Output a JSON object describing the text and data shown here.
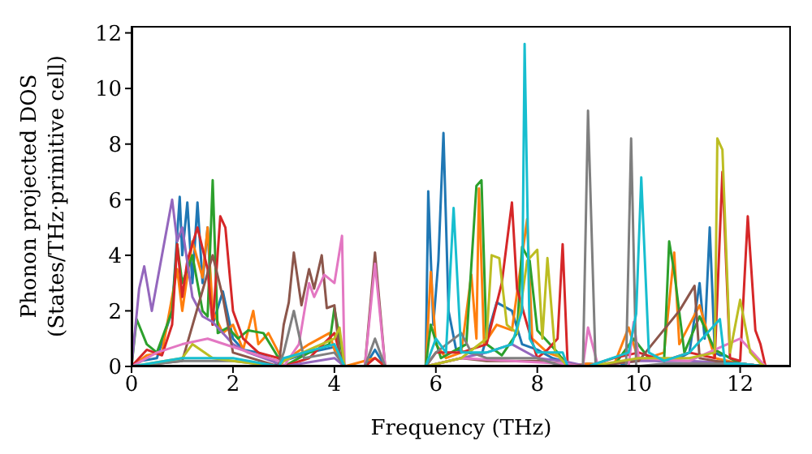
{
  "chart_data": {
    "type": "line",
    "xlabel": "Frequency (THz)",
    "ylabel": "Phonon projected DOS\n(States/THz·primitive cell)",
    "xlim": [
      0,
      13
    ],
    "xticks": [
      0,
      2,
      4,
      6,
      8,
      10,
      12
    ],
    "ylim": [
      0,
      12.25
    ],
    "yticks": [
      0,
      2,
      4,
      6,
      8,
      10,
      12
    ],
    "grid": false,
    "marker": "none",
    "line_style": "solid",
    "series": [
      {
        "color": "#1f77b4",
        "x": [
          0,
          0.2,
          0.5,
          0.8,
          0.95,
          1.0,
          1.1,
          1.2,
          1.3,
          1.4,
          1.5,
          1.6,
          1.8,
          2.0,
          2.2,
          2.5,
          2.8,
          2.9,
          3.0,
          3.5,
          4.0,
          4.1,
          4.2,
          4.6,
          4.8,
          5.0,
          5.8,
          5.85,
          5.95,
          6.05,
          6.15,
          6.25,
          6.4,
          6.6,
          6.9,
          7.2,
          7.5,
          7.7,
          8.0,
          8.3,
          8.5,
          8.6,
          9.0,
          9.6,
          10.0,
          10.4,
          10.8,
          11.0,
          11.2,
          11.3,
          11.4,
          11.5,
          11.6,
          11.7,
          12.0,
          12.4,
          12.5
        ],
        "values": [
          0,
          0.2,
          0.3,
          2,
          6.1,
          4,
          5.9,
          3,
          5.9,
          3,
          5.0,
          1.5,
          2.7,
          1.0,
          0.6,
          0.5,
          0.2,
          0,
          0.2,
          0.5,
          0.7,
          0.3,
          0,
          0,
          0.6,
          0,
          0,
          6.3,
          1.5,
          3.8,
          8.4,
          2.0,
          0.6,
          0.5,
          0.4,
          2.3,
          2.0,
          0.8,
          0.6,
          0.3,
          0.2,
          0,
          0.1,
          0,
          0.3,
          0.2,
          0.3,
          0.5,
          3.0,
          1.0,
          5.0,
          0.5,
          0.4,
          0.4,
          0.1,
          0,
          0
        ]
      },
      {
        "color": "#ff7f0e",
        "x": [
          0,
          0.3,
          0.6,
          0.9,
          1.0,
          1.2,
          1.4,
          1.5,
          1.6,
          1.8,
          2.0,
          2.2,
          2.4,
          2.5,
          2.7,
          2.9,
          3.0,
          3.5,
          3.9,
          4.0,
          4.2,
          4.8,
          5.0,
          5.8,
          5.9,
          6.0,
          6.2,
          6.5,
          6.7,
          6.8,
          6.85,
          6.95,
          7.2,
          7.5,
          7.8,
          7.9,
          8.2,
          8.5,
          8.6,
          9.0,
          9.5,
          9.8,
          10.0,
          10.5,
          10.7,
          10.8,
          11.0,
          11.2,
          11.5,
          12.0,
          12.5
        ],
        "values": [
          0,
          0.4,
          0.5,
          3.5,
          2.0,
          4.5,
          3.2,
          5.0,
          2.0,
          1.2,
          1.5,
          0.6,
          2.0,
          0.8,
          1.2,
          0.5,
          0.2,
          0.8,
          1.2,
          0.6,
          0,
          0.3,
          0,
          0,
          3.4,
          0.8,
          0.3,
          0.5,
          3.3,
          1.0,
          6.4,
          0.8,
          1.5,
          1.3,
          5.3,
          1.0,
          0.5,
          0.3,
          0,
          0.1,
          0,
          1.4,
          0.2,
          0.5,
          4.1,
          0.8,
          1.5,
          2.2,
          0.3,
          0.1,
          0
        ]
      },
      {
        "color": "#2ca02c",
        "x": [
          0,
          0.1,
          0.3,
          0.5,
          0.8,
          0.9,
          1.0,
          1.2,
          1.4,
          1.5,
          1.6,
          1.7,
          1.9,
          2.1,
          2.3,
          2.6,
          2.9,
          3.0,
          3.5,
          3.9,
          4.0,
          4.2,
          5.8,
          5.9,
          6.1,
          6.3,
          6.6,
          6.8,
          6.9,
          7.0,
          7.3,
          7.6,
          7.7,
          7.85,
          8.0,
          8.4,
          8.6,
          9.0,
          9.5,
          9.9,
          10.2,
          10.5,
          10.6,
          10.7,
          10.9,
          11.2,
          11.5,
          11.8,
          12.0,
          12.5
        ],
        "values": [
          0,
          1.7,
          0.8,
          0.5,
          2.0,
          4.4,
          3.0,
          4.0,
          2.0,
          1.8,
          6.7,
          1.2,
          1.4,
          1.0,
          1.3,
          1.2,
          0.3,
          0,
          0.5,
          0.8,
          2.1,
          0,
          0,
          1.5,
          0.3,
          0.5,
          0.8,
          6.5,
          6.7,
          0.8,
          0.4,
          1.2,
          4.3,
          3.8,
          1.3,
          0.5,
          0,
          0,
          0,
          1.0,
          0.3,
          0.2,
          4.5,
          3.4,
          0.5,
          1.8,
          0.6,
          0.3,
          0.1,
          0
        ]
      },
      {
        "color": "#d62728",
        "x": [
          0,
          0.3,
          0.6,
          0.8,
          0.9,
          1.0,
          1.1,
          1.3,
          1.5,
          1.6,
          1.75,
          1.85,
          2.0,
          2.2,
          2.5,
          2.9,
          3.0,
          3.5,
          4.0,
          4.1,
          4.2,
          4.6,
          4.8,
          5.0,
          5.8,
          6.0,
          6.5,
          7.0,
          7.3,
          7.5,
          7.6,
          7.8,
          8.0,
          8.2,
          8.4,
          8.5,
          8.6,
          9.0,
          9.5,
          10.0,
          10.5,
          11.0,
          11.5,
          11.65,
          11.8,
          12.0,
          12.15,
          12.3,
          12.4,
          12.5
        ],
        "values": [
          0,
          0.6,
          0.4,
          1.5,
          4.4,
          2.5,
          3.8,
          5.0,
          3.5,
          1.5,
          5.4,
          5.0,
          2.0,
          1.0,
          0.5,
          0.3,
          0,
          0.3,
          1.2,
          0.5,
          0,
          0,
          0.3,
          0,
          0,
          0.5,
          0.5,
          0.8,
          3.0,
          5.9,
          2.8,
          1.5,
          0.3,
          0.6,
          1.0,
          4.4,
          0,
          0,
          0.3,
          0.5,
          0.2,
          0.5,
          0.3,
          7.0,
          0.3,
          0.2,
          5.4,
          1.3,
          0.8,
          0
        ]
      },
      {
        "color": "#9467bd",
        "x": [
          0,
          0.15,
          0.25,
          0.4,
          0.6,
          0.8,
          0.9,
          1.0,
          1.2,
          1.4,
          1.6,
          1.8,
          2.0,
          2.3,
          2.6,
          2.9,
          3.0,
          4.0,
          4.2,
          5.8,
          6.5,
          7.0,
          7.5,
          8.0,
          8.5,
          9.0,
          10.0,
          11.0,
          12.0,
          12.5
        ],
        "values": [
          0,
          2.8,
          3.6,
          2.0,
          4.0,
          6.0,
          4.5,
          5.0,
          2.5,
          1.8,
          1.6,
          1.2,
          0.8,
          0.5,
          0.3,
          0.1,
          0,
          0.3,
          0,
          0,
          0.3,
          0.5,
          0.8,
          0.3,
          0.2,
          0,
          0.2,
          0.2,
          0.1,
          0
        ]
      },
      {
        "color": "#8c564b",
        "x": [
          0,
          1.0,
          1.6,
          1.8,
          2.0,
          2.9,
          3.0,
          3.1,
          3.2,
          3.35,
          3.5,
          3.6,
          3.75,
          3.85,
          4.0,
          4.1,
          4.2,
          4.6,
          4.8,
          5.0,
          5.8,
          6.5,
          7.0,
          8.0,
          9.0,
          10.0,
          10.8,
          11.0,
          11.1,
          11.2,
          11.5,
          12.0,
          12.5
        ],
        "values": [
          0,
          0.2,
          4.0,
          2.5,
          0.5,
          0,
          1.5,
          2.3,
          4.1,
          2.2,
          3.5,
          2.8,
          4.0,
          2.1,
          2.2,
          0.5,
          0,
          0,
          4.1,
          0,
          0,
          0.3,
          0.2,
          0.2,
          0,
          0.2,
          2.0,
          2.6,
          2.9,
          0.3,
          0.2,
          0.1,
          0
        ]
      },
      {
        "color": "#e377c2",
        "x": [
          0,
          0.5,
          1.0,
          1.5,
          2.0,
          2.5,
          2.9,
          3.0,
          3.3,
          3.5,
          3.6,
          3.8,
          4.0,
          4.15,
          4.2,
          4.6,
          4.8,
          5.0,
          5.8,
          6.5,
          7.5,
          8.5,
          8.9,
          9.0,
          9.2,
          9.8,
          9.9,
          10.0,
          11.0,
          12.0,
          12.5
        ],
        "values": [
          0,
          0.5,
          0.8,
          1.0,
          0.7,
          0.4,
          0.2,
          0,
          0.8,
          3.0,
          2.5,
          3.3,
          3.0,
          4.7,
          0,
          0,
          3.7,
          0,
          0,
          0.3,
          0.2,
          0.1,
          0,
          1.4,
          0,
          0,
          1.6,
          0.3,
          0.2,
          1.0,
          0
        ]
      },
      {
        "color": "#7f7f7f",
        "x": [
          0,
          1.0,
          2.0,
          2.9,
          3.0,
          3.2,
          3.4,
          4.0,
          4.2,
          4.6,
          4.8,
          5.0,
          5.8,
          6.0,
          6.5,
          6.7,
          7.0,
          8.0,
          8.5,
          8.9,
          9.0,
          9.15,
          9.5,
          9.75,
          9.85,
          9.95,
          10.5,
          12.0,
          12.5
        ],
        "values": [
          0,
          0.2,
          0.2,
          0,
          0.5,
          2.0,
          0.3,
          0.5,
          0,
          0,
          1.0,
          0,
          0,
          0.5,
          1.2,
          0.5,
          0.3,
          0.3,
          0,
          0,
          9.2,
          0,
          0,
          0,
          8.2,
          0,
          0.1,
          0.1,
          0
        ]
      },
      {
        "color": "#bcbd22",
        "x": [
          0,
          1.0,
          1.2,
          1.6,
          2.0,
          2.9,
          3.0,
          4.0,
          4.1,
          4.2,
          5.8,
          6.5,
          7.0,
          7.1,
          7.25,
          7.4,
          7.6,
          7.8,
          8.0,
          8.1,
          8.2,
          8.35,
          8.6,
          9.0,
          10.0,
          11.0,
          11.5,
          11.55,
          11.65,
          11.8,
          12.0,
          12.2,
          12.4,
          12.5
        ],
        "values": [
          0,
          0.3,
          0.8,
          0.3,
          0.2,
          0,
          0.2,
          1.0,
          1.4,
          0,
          0,
          0.3,
          1.0,
          4.0,
          3.9,
          1.5,
          1.2,
          3.8,
          4.2,
          1.0,
          3.9,
          0.5,
          0,
          0,
          0.3,
          0.3,
          0.5,
          8.2,
          7.8,
          0.5,
          2.4,
          0.5,
          0.1,
          0
        ]
      },
      {
        "color": "#17becf",
        "x": [
          0,
          1.0,
          2.0,
          2.9,
          3.0,
          4.0,
          4.2,
          5.8,
          6.0,
          6.2,
          6.35,
          6.5,
          7.0,
          7.5,
          7.7,
          7.75,
          7.85,
          8.0,
          8.5,
          8.6,
          9.0,
          9.8,
          9.95,
          10.05,
          10.2,
          10.5,
          11.0,
          11.6,
          11.7,
          12.0,
          12.5
        ],
        "values": [
          0,
          0.3,
          0.3,
          0,
          0.3,
          0.8,
          0,
          0,
          1.0,
          0.5,
          5.7,
          0.5,
          0.5,
          0.8,
          2.0,
          11.6,
          1.0,
          0.5,
          0.5,
          0,
          0,
          0.5,
          1.9,
          6.8,
          0.5,
          0.2,
          0.5,
          1.7,
          0.1,
          0.1,
          0
        ]
      }
    ]
  }
}
